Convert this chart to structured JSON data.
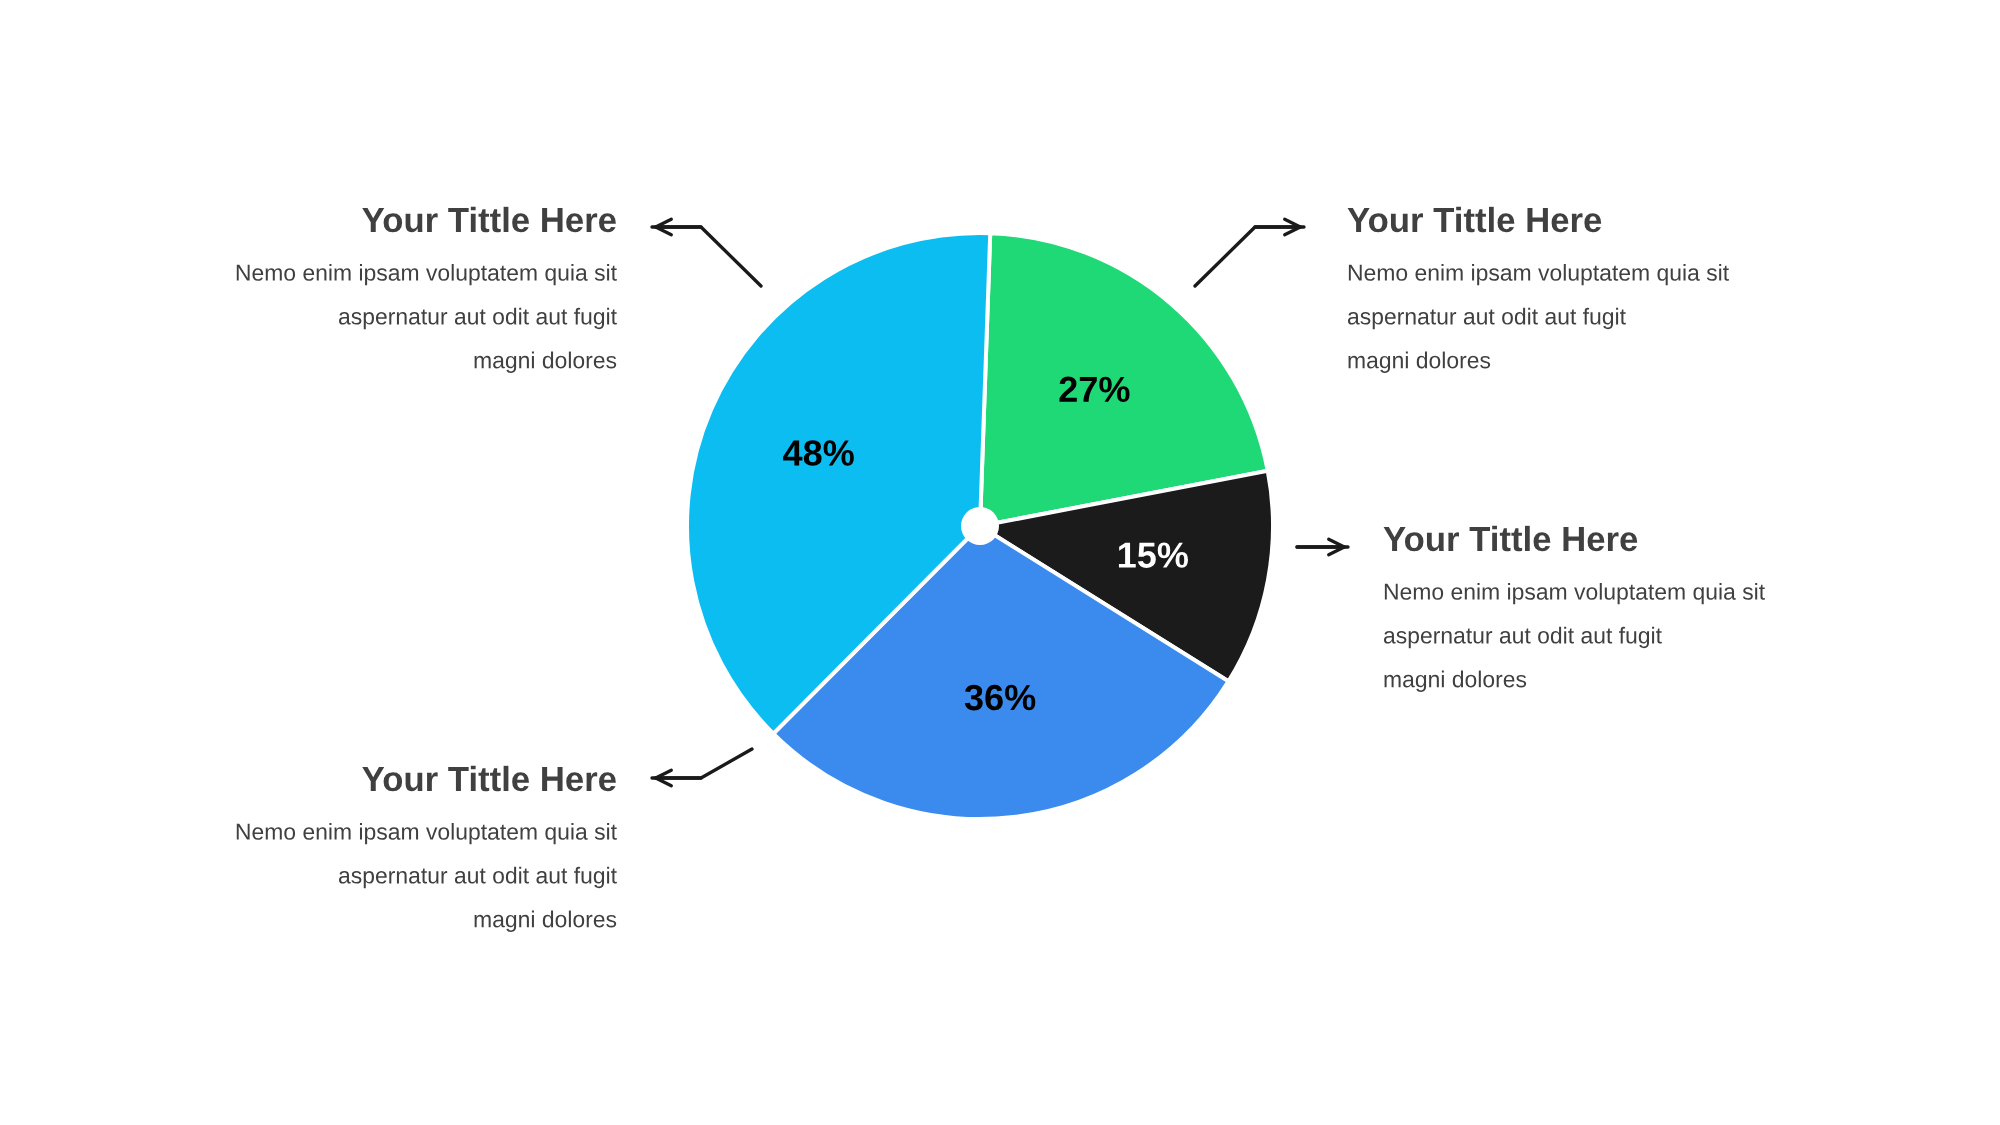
{
  "chart_data": {
    "type": "pie",
    "categories": [
      "Your Tittle Here",
      "Your Tittle Here",
      "Your Tittle Here",
      "Your Tittle Here"
    ],
    "values": [
      27,
      15,
      36,
      48
    ],
    "colors": [
      "#1fd977",
      "#1b1b1b",
      "#3b8bee",
      "#0bbdf1"
    ],
    "value_labels": [
      "27%",
      "15%",
      "36%",
      "48%"
    ],
    "annotations": [
      "Nemo enim ipsam voluptatem quia sit\naspernatur aut odit aut fugit\nmagni dolores",
      "Nemo enim ipsam voluptatem quia sit\naspernatur aut odit aut fugit\nmagni dolores",
      "Nemo enim ipsam voluptatem quia sit\naspernatur aut odit aut fugit\nmagni dolores",
      "Nemo enim ipsam voluptatem quia sit\naspernatur aut odit aut fugit\nmagni dolores"
    ]
  }
}
